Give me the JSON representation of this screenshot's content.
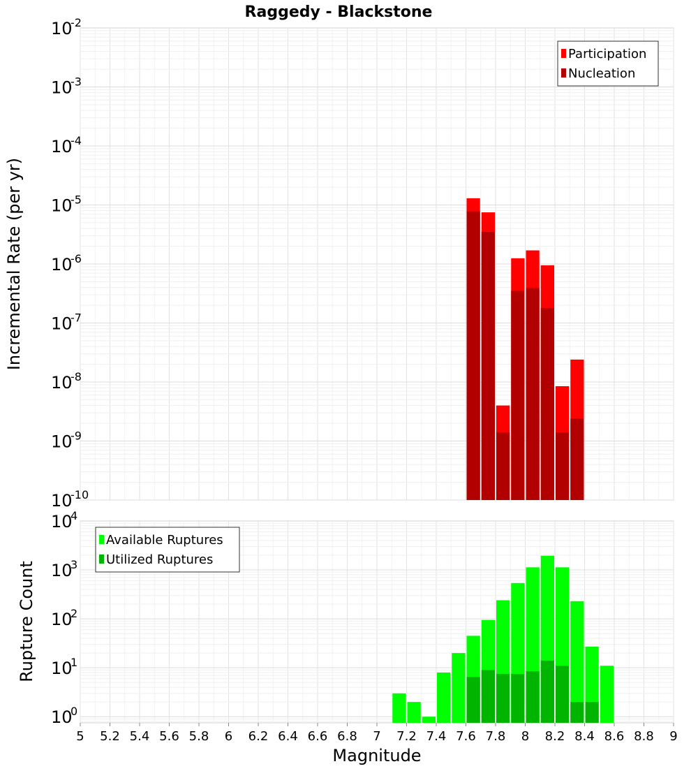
{
  "chart_data": [
    {
      "type": "bar",
      "panel": "top",
      "title": "Raggedy - Blackstone",
      "xlabel": "",
      "ylabel": "Incremental Rate (per yr)",
      "yscale": "log",
      "xlim": [
        5,
        9
      ],
      "ylim": [
        1e-10,
        0.01
      ],
      "y_ticks": [
        {
          "base": "10",
          "exp": "-2"
        },
        {
          "base": "10",
          "exp": "-3"
        },
        {
          "base": "10",
          "exp": "-4"
        },
        {
          "base": "10",
          "exp": "-5"
        },
        {
          "base": "10",
          "exp": "-6"
        },
        {
          "base": "10",
          "exp": "-7"
        },
        {
          "base": "10",
          "exp": "-8"
        },
        {
          "base": "10",
          "exp": "-9"
        },
        {
          "base": "10",
          "exp": "-10"
        }
      ],
      "bar_width": 0.1,
      "x": [
        7.65,
        7.75,
        7.85,
        7.95,
        8.05,
        8.15,
        8.25,
        8.35
      ],
      "series": [
        {
          "name": "Participation",
          "color": "#ff0000",
          "values": [
            1.3e-05,
            7.5e-06,
            4e-09,
            1.25e-06,
            1.7e-06,
            9.5e-07,
            8.5e-09,
            2.4e-08
          ]
        },
        {
          "name": "Nucleation",
          "color": "#b20000",
          "values": [
            7.8e-06,
            3.5e-06,
            1.4e-09,
            3.5e-07,
            3.9e-07,
            1.8e-07,
            1.4e-09,
            2.4e-09
          ]
        }
      ],
      "legend": {
        "position": "top-right",
        "items": [
          "Participation",
          "Nucleation"
        ]
      },
      "grid": true
    },
    {
      "type": "bar",
      "panel": "bottom",
      "xlabel": "Magnitude",
      "ylabel": "Rupture Count",
      "yscale": "log",
      "xlim": [
        5,
        9
      ],
      "ylim": [
        0.75,
        10000
      ],
      "x_ticks": [
        "5",
        "5.2",
        "5.4",
        "5.6",
        "5.8",
        "6",
        "6.2",
        "6.4",
        "6.6",
        "6.8",
        "7",
        "7.2",
        "7.4",
        "7.6",
        "7.8",
        "8",
        "8.2",
        "8.4",
        "8.6",
        "8.8",
        "9"
      ],
      "y_ticks": [
        {
          "base": "10",
          "exp": "4"
        },
        {
          "base": "10",
          "exp": "3"
        },
        {
          "base": "10",
          "exp": "2"
        },
        {
          "base": "10",
          "exp": "1"
        },
        {
          "base": "10",
          "exp": "0"
        }
      ],
      "bar_width": 0.1,
      "x": [
        7.15,
        7.25,
        7.35,
        7.45,
        7.55,
        7.65,
        7.75,
        7.85,
        7.95,
        8.05,
        8.15,
        8.25,
        8.35,
        8.45,
        8.55
      ],
      "series": [
        {
          "name": "Available Ruptures",
          "color": "#00ff00",
          "values": [
            3,
            2,
            1,
            8,
            20,
            45,
            95,
            240,
            540,
            1130,
            1950,
            1130,
            230,
            27,
            11
          ]
        },
        {
          "name": "Utilized Ruptures",
          "color": "#00b400",
          "values": [
            null,
            null,
            null,
            null,
            null,
            6.5,
            9,
            7.5,
            7.5,
            8.5,
            14,
            11,
            2,
            2,
            null
          ]
        }
      ],
      "legend": {
        "position": "top-left",
        "items": [
          "Available Ruptures",
          "Utilized Ruptures"
        ]
      },
      "grid": true
    }
  ]
}
